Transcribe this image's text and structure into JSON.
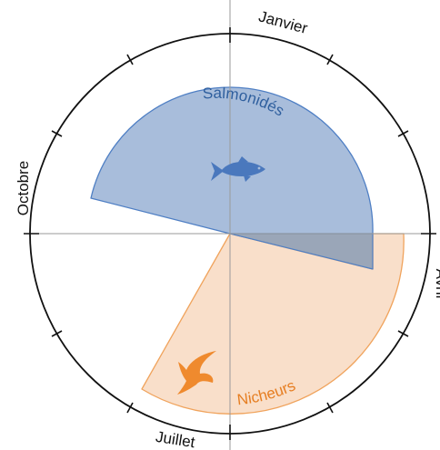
{
  "calendar": {
    "months": {
      "january": "Janvier",
      "april": "Avril",
      "july": "Juillet",
      "october": "Octobre"
    }
  },
  "periods": [
    {
      "id": "salmonides",
      "label": "Salmonidés",
      "icon": "fish-icon",
      "color_fill": "#a8bddb",
      "color_stroke": "#4f7fc4",
      "color_icon": "#4a78bd",
      "color_text": "#2f5f9e"
    },
    {
      "id": "nicheurs",
      "label": "Nicheurs",
      "icon": "bird-icon",
      "color_fill": "#f8dcc5",
      "color_stroke": "#f0a35c",
      "color_icon": "#ef8a2e",
      "color_text": "#e67e22"
    }
  ]
}
